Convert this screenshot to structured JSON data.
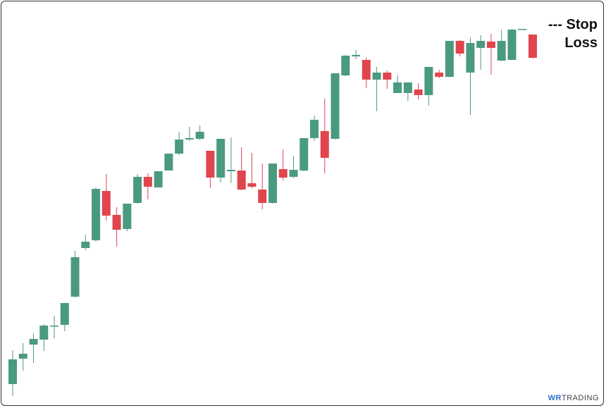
{
  "chart_data": {
    "type": "candlestick",
    "annotation": "--- Stop Loss",
    "logo": {
      "mark": "WR",
      "text": "TRADING"
    },
    "up_color": "#4a9a80",
    "down_color": "#e0454e",
    "ylim": [
      0,
      580
    ],
    "open": [
      35,
      71,
      91,
      98,
      117,
      119,
      159,
      228,
      239,
      309,
      275,
      255,
      292,
      329,
      314,
      338,
      362,
      382,
      383,
      366,
      328,
      337,
      338,
      320,
      311,
      292,
      340,
      329,
      338,
      384,
      394,
      383,
      473,
      500,
      495,
      467,
      477,
      448,
      448,
      453,
      445,
      477,
      471,
      522,
      477,
      512,
      521,
      494,
      495,
      538,
      531
    ],
    "high": [
      83,
      93,
      107,
      120,
      132,
      150,
      224,
      247,
      314,
      333,
      286,
      291,
      333,
      334,
      337,
      362,
      393,
      400,
      402,
      366,
      383,
      385,
      371,
      363,
      348,
      348,
      368,
      359,
      384,
      416,
      440,
      476,
      502,
      509,
      498,
      485,
      480,
      473,
      463,
      462,
      485,
      481,
      522,
      523,
      527,
      530,
      532,
      538,
      539,
      539,
      531
    ],
    "low": [
      18,
      54,
      65,
      82,
      100,
      110,
      158,
      225,
      237,
      267,
      230,
      252,
      291,
      297,
      314,
      338,
      360,
      380,
      381,
      313,
      321,
      320,
      310,
      313,
      283,
      291,
      324,
      327,
      337,
      380,
      334,
      382,
      472,
      496,
      455,
      422,
      454,
      448,
      437,
      439,
      430,
      469,
      470,
      500,
      417,
      481,
      474,
      493,
      495,
      538,
      497
    ],
    "close": [
      70,
      78,
      99,
      118,
      118,
      150,
      215,
      237,
      312,
      274,
      254,
      291,
      329,
      315,
      337,
      362,
      382,
      384,
      393,
      328,
      383,
      339,
      311,
      315,
      292,
      348,
      328,
      339,
      384,
      410,
      356,
      476,
      501,
      502,
      467,
      477,
      467,
      463,
      463,
      445,
      485,
      471,
      522,
      504,
      519,
      522,
      512,
      522,
      538,
      539,
      498
    ]
  }
}
